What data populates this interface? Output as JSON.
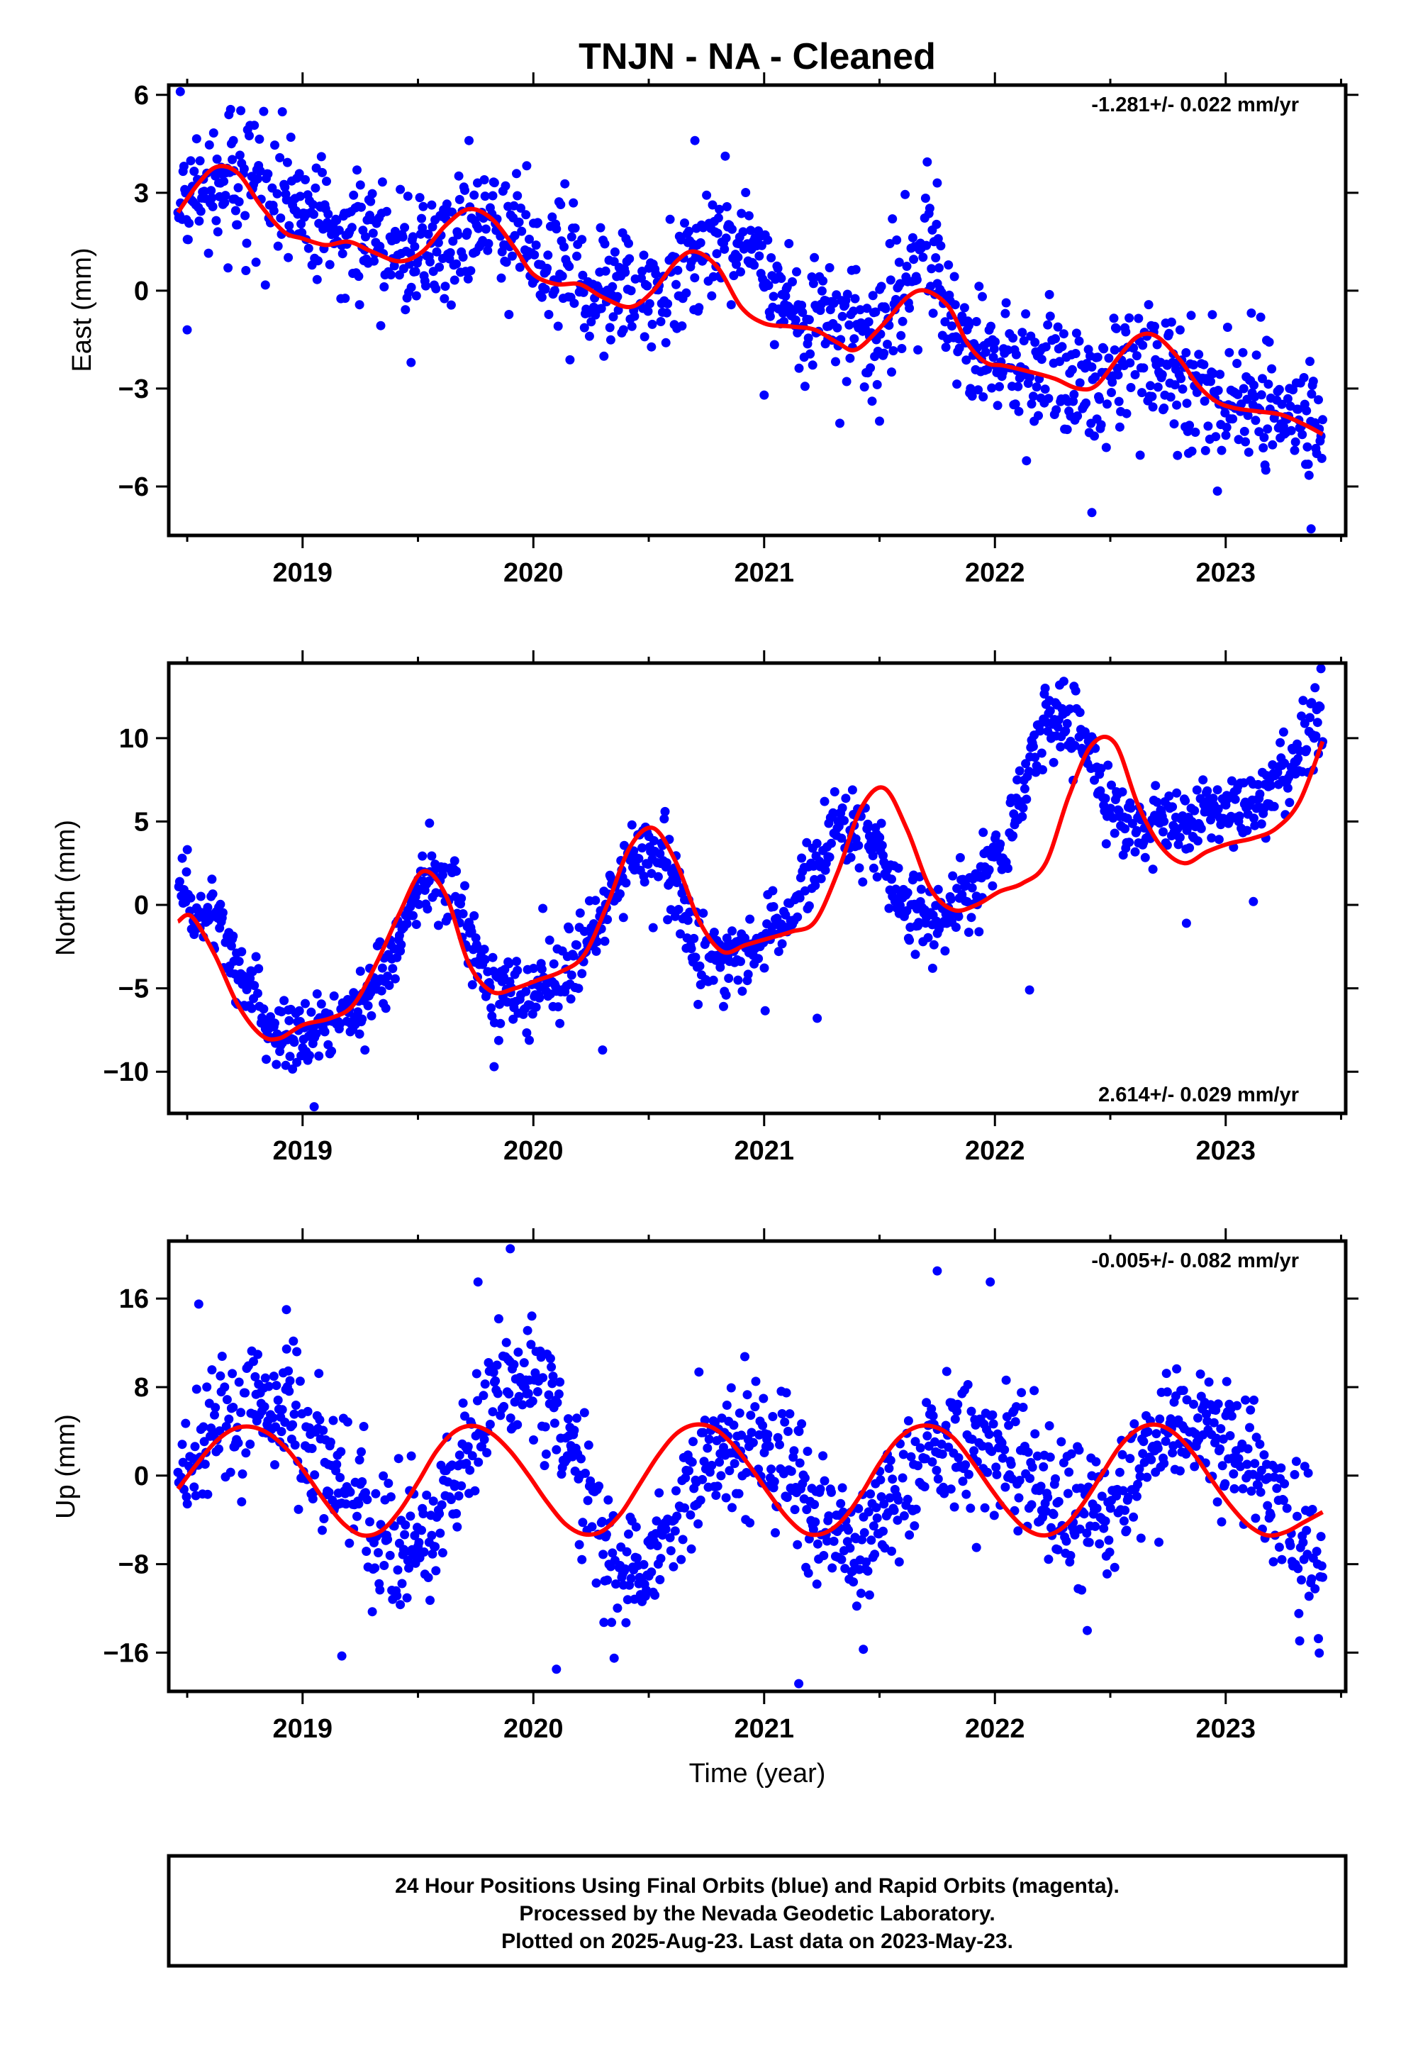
{
  "title": "TNJN  - NA - Cleaned",
  "xlabel": "Time (year)",
  "footer": {
    "lines": [
      "24 Hour Positions Using Final Orbits (blue) and Rapid Orbits (magenta).",
      "Processed by the Nevada Geodetic Laboratory.",
      "Plotted on 2025-Aug-23. Last data on 2023-May-23."
    ]
  },
  "colors": {
    "final_orbits": "#0000ff",
    "model": "#ff0000",
    "frame": "#000000"
  },
  "chart_data": [
    {
      "type": "scatter",
      "ylabel": "East (mm)",
      "x_range": [
        2018.42,
        2023.52
      ],
      "ylim": [
        -7.5,
        6.3
      ],
      "x_ticks": [
        "2019",
        "2020",
        "2021",
        "2022",
        "2023"
      ],
      "y_ticks": [
        6,
        3,
        0,
        -3,
        -6
      ],
      "y_tick_labels": [
        "6",
        "3",
        "0",
        "−3",
        "−6"
      ],
      "rate_label": "-1.281+/- 0.022 mm/yr",
      "rate_position": "top-right",
      "series": [
        {
          "kind": "model-fit",
          "x": [
            2018.46,
            2018.55,
            2018.63,
            2018.72,
            2018.82,
            2018.92,
            2019.0,
            2019.1,
            2019.2,
            2019.3,
            2019.42,
            2019.52,
            2019.62,
            2019.72,
            2019.82,
            2019.92,
            2020.0,
            2020.1,
            2020.2,
            2020.3,
            2020.42,
            2020.52,
            2020.62,
            2020.7,
            2020.8,
            2020.9,
            2021.0,
            2021.12,
            2021.22,
            2021.32,
            2021.4,
            2021.52,
            2021.62,
            2021.7,
            2021.8,
            2021.88,
            2021.96,
            2022.04,
            2022.16,
            2022.26,
            2022.36,
            2022.44,
            2022.54,
            2022.62,
            2022.7,
            2022.8,
            2022.88,
            2022.96,
            2023.04,
            2023.14,
            2023.24,
            2023.34,
            2023.42
          ],
          "y": [
            2.4,
            3.3,
            3.8,
            3.6,
            2.6,
            1.8,
            1.6,
            1.4,
            1.5,
            1.2,
            0.9,
            1.2,
            2.0,
            2.5,
            2.2,
            1.3,
            0.5,
            0.2,
            0.2,
            -0.2,
            -0.5,
            0.0,
            0.9,
            1.2,
            0.7,
            -0.5,
            -1.0,
            -1.1,
            -1.2,
            -1.6,
            -1.8,
            -1.0,
            -0.2,
            0.0,
            -0.5,
            -1.6,
            -2.2,
            -2.3,
            -2.5,
            -2.7,
            -3.0,
            -2.9,
            -2.0,
            -1.4,
            -1.4,
            -2.1,
            -2.9,
            -3.4,
            -3.6,
            -3.7,
            -3.8,
            -4.1,
            -4.4
          ]
        },
        {
          "kind": "daily-positions",
          "x_start": 2018.46,
          "x_end": 2023.42,
          "trend": [
            2.4,
            3.4,
            3.5,
            2.2,
            1.6,
            1.2,
            1.1,
            2.2,
            1.6,
            0.4,
            0.0,
            -0.2,
            1.9,
            1.1,
            -0.8,
            -0.9,
            -1.0,
            1.5,
            -2.0,
            -2.2,
            -2.4,
            -2.8,
            -2.0,
            -3.0,
            -3.5,
            -3.4,
            -4.5
          ],
          "scatter": 0.95,
          "outliers": [
            [
              2018.47,
              6.1
            ],
            [
              2018.5,
              -1.2
            ],
            [
              2018.7,
              4.6
            ],
            [
              2019.47,
              -2.2
            ],
            [
              2020.7,
              4.6
            ],
            [
              2021.75,
              3.3
            ],
            [
              2022.42,
              -6.8
            ],
            [
              2023.37,
              -7.3
            ],
            [
              2021.0,
              -3.2
            ],
            [
              2021.5,
              -4.0
            ]
          ]
        }
      ]
    },
    {
      "type": "scatter",
      "ylabel": "North (mm)",
      "x_range": [
        2018.42,
        2023.52
      ],
      "ylim": [
        -12.5,
        14.5
      ],
      "x_ticks": [
        "2019",
        "2020",
        "2021",
        "2022",
        "2023"
      ],
      "y_ticks": [
        10,
        5,
        0,
        -5,
        -10
      ],
      "y_tick_labels": [
        "10",
        "5",
        "0",
        "−5",
        "−10"
      ],
      "rate_label": "2.614+/- 0.029 mm/yr",
      "rate_position": "bottom-right",
      "series": [
        {
          "kind": "model-fit",
          "x": [
            2018.46,
            2018.52,
            2018.62,
            2018.72,
            2018.82,
            2018.9,
            2019.0,
            2019.12,
            2019.22,
            2019.32,
            2019.42,
            2019.52,
            2019.62,
            2019.72,
            2019.82,
            2019.92,
            2020.02,
            2020.12,
            2020.22,
            2020.32,
            2020.42,
            2020.52,
            2020.62,
            2020.72,
            2020.82,
            2020.92,
            2021.02,
            2021.12,
            2021.22,
            2021.32,
            2021.42,
            2021.52,
            2021.62,
            2021.72,
            2021.82,
            2021.92,
            2022.02,
            2022.12,
            2022.22,
            2022.32,
            2022.42,
            2022.52,
            2022.62,
            2022.72,
            2022.82,
            2022.92,
            2023.02,
            2023.12,
            2023.22,
            2023.32,
            2023.42
          ],
          "y": [
            -1.0,
            -0.7,
            -3.0,
            -6.0,
            -7.8,
            -8.0,
            -7.2,
            -6.8,
            -6.0,
            -3.5,
            -0.5,
            2.0,
            0.6,
            -3.5,
            -5.2,
            -5.0,
            -4.5,
            -4.0,
            -3.0,
            0.0,
            3.5,
            4.6,
            2.5,
            -1.0,
            -2.8,
            -2.4,
            -2.0,
            -1.6,
            -1.0,
            2.0,
            5.8,
            7.0,
            4.5,
            1.0,
            -0.3,
            0.0,
            0.8,
            1.3,
            2.5,
            6.5,
            9.6,
            9.7,
            6.0,
            3.5,
            2.5,
            3.2,
            3.7,
            4.0,
            4.6,
            6.2,
            9.8
          ]
        },
        {
          "kind": "daily-positions",
          "x_start": 2018.46,
          "x_end": 2023.42,
          "trend": [
            0.5,
            -0.8,
            -5.0,
            -7.5,
            -7.6,
            -6.5,
            -4.5,
            1.5,
            1.0,
            -5.0,
            -5.5,
            -5.0,
            -2.0,
            3.0,
            3.0,
            -3.0,
            -3.5,
            -2.0,
            1.0,
            5.0,
            4.0,
            -0.5,
            -1.0,
            1.0,
            4.0,
            11.5,
            10.0,
            5.0,
            4.8,
            5.0,
            5.5,
            6.0,
            8.0,
            11.5
          ],
          "scatter": 1.1,
          "outliers": [
            [
              2019.05,
              -12.1
            ],
            [
              2019.27,
              -8.7
            ],
            [
              2019.83,
              -9.7
            ],
            [
              2020.3,
              -8.7
            ],
            [
              2021.23,
              -6.8
            ],
            [
              2021.73,
              -3.8
            ],
            [
              2022.15,
              -5.1
            ],
            [
              2022.83,
              -1.1
            ],
            [
              2023.12,
              0.2
            ],
            [
              2019.55,
              4.9
            ]
          ]
        }
      ]
    },
    {
      "type": "scatter",
      "ylabel": "Up (mm)",
      "x_range": [
        2018.42,
        2023.52
      ],
      "ylim": [
        -19.5,
        21.2
      ],
      "x_ticks": [
        "2019",
        "2020",
        "2021",
        "2022",
        "2023"
      ],
      "y_ticks": [
        16,
        8,
        0,
        -8,
        -16
      ],
      "y_tick_labels": [
        "16",
        "8",
        "0",
        "−8",
        "−16"
      ],
      "rate_label": "-0.005+/- 0.082 mm/yr",
      "rate_position": "top-right",
      "series": [
        {
          "kind": "model-fit",
          "x": [
            2018.46,
            2018.54,
            2018.62,
            2018.7,
            2018.78,
            2018.86,
            2018.94,
            2019.02,
            2019.1,
            2019.18,
            2019.26,
            2019.34,
            2019.42,
            2019.5,
            2019.58,
            2019.66,
            2019.74,
            2019.82,
            2019.9,
            2019.98,
            2020.06,
            2020.14,
            2020.22,
            2020.3,
            2020.38,
            2020.46,
            2020.54,
            2020.62,
            2020.7,
            2020.78,
            2020.86,
            2020.94,
            2021.02,
            2021.1,
            2021.18,
            2021.26,
            2021.34,
            2021.42,
            2021.5,
            2021.58,
            2021.66,
            2021.74,
            2021.82,
            2021.9,
            2021.98,
            2022.06,
            2022.14,
            2022.22,
            2022.3,
            2022.38,
            2022.46,
            2022.54,
            2022.62,
            2022.7,
            2022.78,
            2022.86,
            2022.94,
            2023.02,
            2023.1,
            2023.18,
            2023.26,
            2023.34,
            2023.42
          ],
          "y": [
            -1.2,
            1.0,
            3.0,
            4.2,
            4.4,
            3.7,
            2.2,
            0.0,
            -2.4,
            -4.4,
            -5.4,
            -5.0,
            -3.2,
            -0.6,
            2.2,
            4.0,
            4.5,
            3.8,
            2.2,
            0.0,
            -2.4,
            -4.4,
            -5.3,
            -5.0,
            -3.4,
            -0.8,
            1.8,
            3.8,
            4.6,
            4.3,
            2.9,
            0.8,
            -1.6,
            -3.8,
            -5.2,
            -5.2,
            -4.0,
            -1.7,
            1.1,
            3.3,
            4.4,
            4.4,
            3.4,
            1.3,
            -1.1,
            -3.3,
            -4.9,
            -5.4,
            -4.6,
            -2.6,
            0.0,
            2.6,
            4.2,
            4.6,
            3.8,
            2.0,
            -0.4,
            -2.7,
            -4.5,
            -5.4,
            -5.1,
            -4.2,
            -3.3
          ]
        },
        {
          "kind": "daily-positions",
          "x_start": 2018.46,
          "x_end": 2023.42,
          "trend": [
            -1.0,
            5.0,
            6.0,
            5.5,
            2.0,
            -2.5,
            -8.0,
            -6.0,
            2.0,
            9.0,
            9.0,
            2.0,
            -7.0,
            -8.5,
            -3.0,
            2.0,
            3.0,
            1.0,
            -5.0,
            -6.5,
            -3.0,
            3.0,
            4.0,
            2.0,
            -2.0,
            -4.0,
            -3.5,
            2.0,
            5.0,
            4.0,
            1.0,
            -4.5,
            -9.0
          ],
          "scatter": 3.0,
          "outliers": [
            [
              2018.55,
              15.5
            ],
            [
              2019.9,
              20.5
            ],
            [
              2019.76,
              17.5
            ],
            [
              2020.1,
              -17.5
            ],
            [
              2020.35,
              -16.5
            ],
            [
              2021.15,
              -18.8
            ],
            [
              2021.43,
              -15.7
            ],
            [
              2021.75,
              18.5
            ],
            [
              2021.98,
              17.5
            ],
            [
              2019.17,
              -16.3
            ],
            [
              2022.4,
              -14.0
            ],
            [
              2018.93,
              15.0
            ]
          ]
        }
      ]
    }
  ]
}
